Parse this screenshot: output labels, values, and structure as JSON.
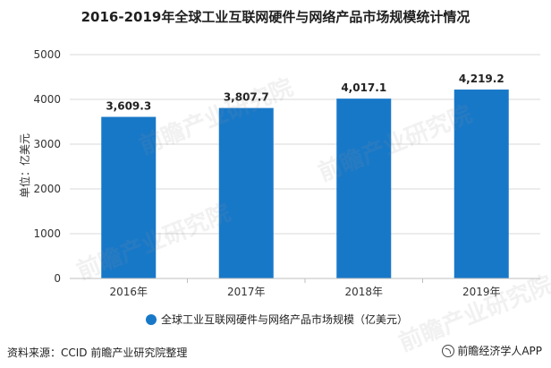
{
  "title": "2016-2019年全球工业互联网硬件与网络产品市场规模统计情况",
  "source": "资料来源：CCID 前瞻产业研究院整理",
  "brand": "前瞻经济学人APP",
  "watermark": "前瞻产业研究院",
  "colors": {
    "bar": "#1878c8",
    "grid": "#d9d9d9",
    "axis": "#bfbfbf"
  },
  "chart_data": {
    "type": "bar",
    "categories": [
      "2016年",
      "2017年",
      "2018年",
      "2019年"
    ],
    "series": [
      {
        "name": "全球工业互联网硬件与网络产品市场规模（亿美元）",
        "values": [
          3609.3,
          3807.7,
          4017.1,
          4219.2
        ]
      }
    ],
    "data_labels": [
      "3,609.3",
      "3,807.7",
      "4,017.1",
      "4,219.2"
    ],
    "ylabel": "单位：亿美元",
    "ylim": [
      0,
      5000
    ],
    "yticks": [
      0,
      1000,
      2000,
      3000,
      4000,
      5000
    ],
    "grid": true,
    "legend": "bottom-center"
  }
}
